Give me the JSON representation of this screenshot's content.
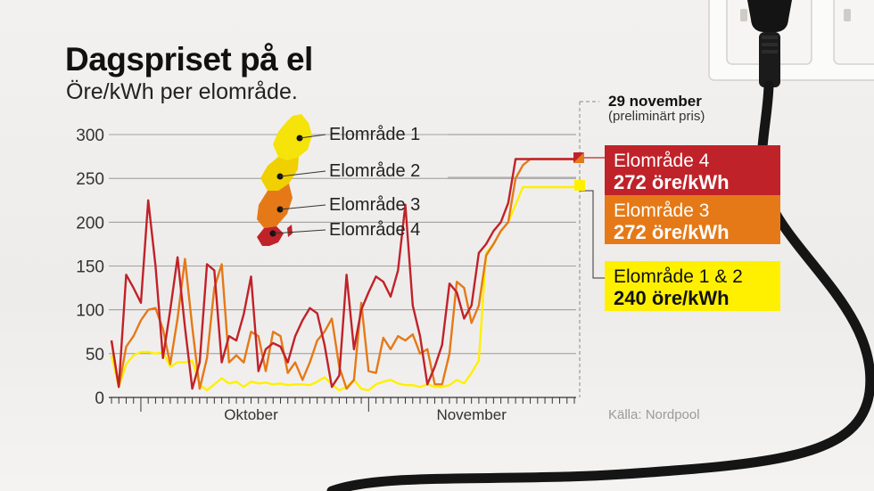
{
  "header": {
    "title": "Dagspriset på el",
    "subtitle": "Öre/kWh per elområde."
  },
  "callout": {
    "date": "29 november",
    "note": "(preliminärt pris)",
    "boxes": [
      {
        "id": "se4",
        "name": "Elområde 4",
        "price": "272 öre/kWh",
        "color": "#c0222a"
      },
      {
        "id": "se3",
        "name": "Elområde 3",
        "price": "272 öre/kWh",
        "color": "#e57918"
      },
      {
        "id": "se12",
        "name": "Elområde 1 & 2",
        "price": "240 öre/kWh",
        "color": "#fff000"
      }
    ]
  },
  "map": {
    "labels": [
      "Elområde 1",
      "Elområde 2",
      "Elområde 3",
      "Elområde 4"
    ],
    "colors": [
      "#f5e30a",
      "#f0d000",
      "#e57918",
      "#c0222a"
    ]
  },
  "source": "Källa: Nordpool",
  "chart_data": {
    "type": "line",
    "title": "Dagspriset på el",
    "subtitle": "Öre/kWh per elområde.",
    "xlabel": "",
    "ylabel": "",
    "ylim": [
      0,
      300
    ],
    "yticks": [
      0,
      50,
      100,
      150,
      200,
      250,
      300
    ],
    "xticklabels": [
      "Oktober",
      "November"
    ],
    "grid": true,
    "x": [
      "09-27",
      "09-28",
      "09-29",
      "09-30",
      "10-01",
      "10-02",
      "10-03",
      "10-04",
      "10-05",
      "10-06",
      "10-07",
      "10-08",
      "10-09",
      "10-10",
      "10-11",
      "10-12",
      "10-13",
      "10-14",
      "10-15",
      "10-16",
      "10-17",
      "10-18",
      "10-19",
      "10-20",
      "10-21",
      "10-22",
      "10-23",
      "10-24",
      "10-25",
      "10-26",
      "10-27",
      "10-28",
      "10-29",
      "10-30",
      "10-31",
      "11-01",
      "11-02",
      "11-03",
      "11-04",
      "11-05",
      "11-06",
      "11-07",
      "11-08",
      "11-09",
      "11-10",
      "11-11",
      "11-12",
      "11-13",
      "11-14",
      "11-15",
      "11-16",
      "11-17",
      "11-18",
      "11-19",
      "11-20",
      "11-21",
      "11-22",
      "11-23",
      "11-24",
      "11-25",
      "11-26",
      "11-27",
      "11-28",
      "11-29"
    ],
    "series": [
      {
        "name": "Elområde 4",
        "color": "#c0222a",
        "values": [
          65,
          12,
          140,
          125,
          108,
          225,
          150,
          45,
          100,
          160,
          80,
          10,
          40,
          152,
          145,
          40,
          70,
          65,
          95,
          138,
          30,
          55,
          62,
          58,
          40,
          70,
          88,
          102,
          96,
          60,
          12,
          25,
          140,
          55,
          100,
          120,
          138,
          132,
          115,
          145,
          220,
          105,
          70,
          15,
          35,
          60,
          130,
          120,
          90,
          105,
          165,
          175,
          190,
          200,
          222,
          272,
          272,
          272,
          272,
          272,
          272,
          272,
          272,
          272
        ]
      },
      {
        "name": "Elområde 3",
        "color": "#e57918",
        "values": [
          65,
          12,
          58,
          70,
          88,
          100,
          102,
          78,
          38,
          90,
          158,
          80,
          10,
          45,
          125,
          152,
          40,
          48,
          40,
          75,
          70,
          30,
          75,
          70,
          28,
          40,
          20,
          40,
          65,
          75,
          90,
          35,
          10,
          20,
          108,
          30,
          28,
          68,
          55,
          70,
          65,
          72,
          50,
          55,
          15,
          15,
          50,
          132,
          125,
          85,
          105,
          162,
          175,
          190,
          200,
          250,
          265,
          272,
          272,
          272,
          272,
          272,
          272,
          272
        ]
      },
      {
        "name": "Elområde 1 & 2",
        "color": "#fff000",
        "values": [
          48,
          12,
          38,
          48,
          52,
          52,
          50,
          52,
          35,
          40,
          40,
          42,
          15,
          8,
          15,
          22,
          16,
          18,
          12,
          18,
          16,
          17,
          15,
          16,
          14,
          15,
          15,
          14,
          18,
          23,
          15,
          8,
          12,
          20,
          10,
          8,
          15,
          18,
          20,
          16,
          14,
          14,
          12,
          15,
          12,
          12,
          14,
          20,
          16,
          28,
          42,
          165,
          175,
          190,
          200,
          220,
          240,
          240,
          240,
          240,
          240,
          240,
          240,
          240
        ]
      }
    ]
  }
}
